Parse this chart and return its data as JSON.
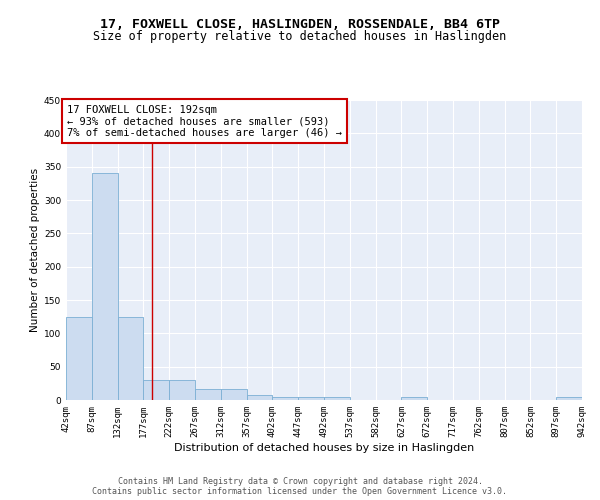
{
  "title": "17, FOXWELL CLOSE, HASLINGDEN, ROSSENDALE, BB4 6TP",
  "subtitle": "Size of property relative to detached houses in Haslingden",
  "xlabel": "Distribution of detached houses by size in Haslingden",
  "ylabel": "Number of detached properties",
  "bin_edges": [
    42,
    87,
    132,
    177,
    222,
    267,
    312,
    357,
    402,
    447,
    492,
    537,
    582,
    627,
    672,
    717,
    762,
    807,
    852,
    897,
    942
  ],
  "bin_labels": [
    "42sqm",
    "87sqm",
    "132sqm",
    "177sqm",
    "222sqm",
    "267sqm",
    "312sqm",
    "357sqm",
    "402sqm",
    "447sqm",
    "492sqm",
    "537sqm",
    "582sqm",
    "627sqm",
    "672sqm",
    "717sqm",
    "762sqm",
    "807sqm",
    "852sqm",
    "897sqm",
    "942sqm"
  ],
  "bar_heights": [
    125,
    340,
    125,
    30,
    30,
    17,
    17,
    8,
    5,
    5,
    5,
    0,
    0,
    5,
    0,
    0,
    0,
    0,
    0,
    5
  ],
  "bar_color": "#ccdcf0",
  "bar_edge_color": "#7bafd4",
  "vline_x": 192,
  "vline_color": "#cc0000",
  "annotation_text": "17 FOXWELL CLOSE: 192sqm\n← 93% of detached houses are smaller (593)\n7% of semi-detached houses are larger (46) →",
  "annotation_box_color": "white",
  "annotation_box_edge_color": "#cc0000",
  "footer_text": "Contains HM Land Registry data © Crown copyright and database right 2024.\nContains public sector information licensed under the Open Government Licence v3.0.",
  "ylim": [
    0,
    450
  ],
  "yticks": [
    0,
    50,
    100,
    150,
    200,
    250,
    300,
    350,
    400,
    450
  ],
  "bg_color": "#e8eef8",
  "grid_color": "white",
  "title_fontsize": 9.5,
  "subtitle_fontsize": 8.5,
  "xlabel_fontsize": 8,
  "ylabel_fontsize": 7.5,
  "tick_fontsize": 6.5,
  "annotation_fontsize": 7.5,
  "footer_fontsize": 6
}
